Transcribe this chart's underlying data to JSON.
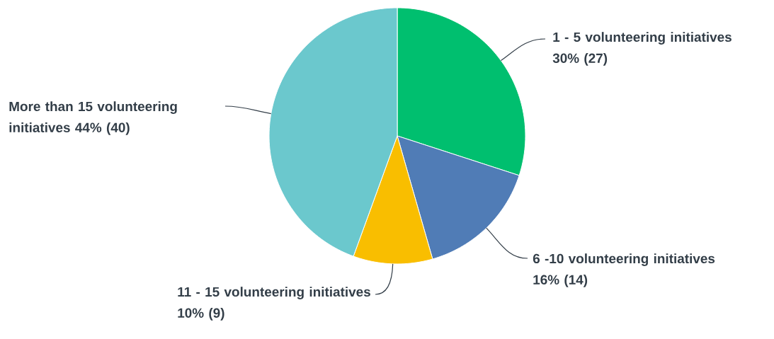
{
  "chart_data": {
    "type": "pie",
    "categories": [
      "1 - 5 volunteering initiatives",
      "6 -10 volunteering initiatives",
      "11 - 15 volunteering initiatives",
      "More than 15 volunteering initiatives"
    ],
    "values": [
      27,
      14,
      9,
      40
    ],
    "value_labels": [
      "30% (27)",
      "16% (14)",
      "10% (9)",
      "44% (40)"
    ],
    "colors": [
      "#00bf6f",
      "#507cb6",
      "#f9be00",
      "#6bc8cd"
    ]
  }
}
